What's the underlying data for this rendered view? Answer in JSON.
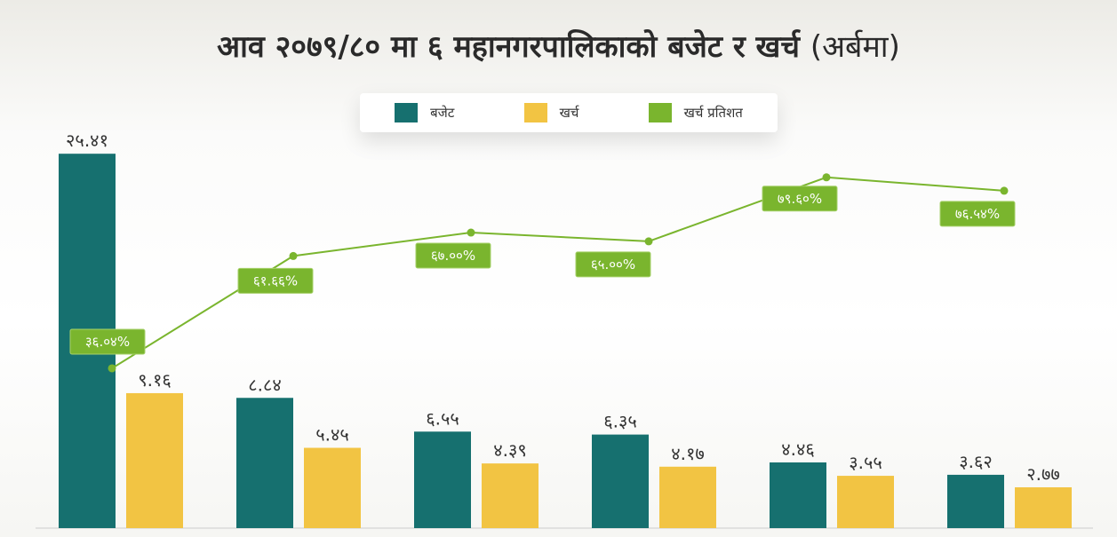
{
  "title": "आव २०७९/८० मा ६ महानगरपालिकाको बजेट र खर्च",
  "title_unit": "(अर्बमा)",
  "legend": [
    {
      "label": "बजेट",
      "color": "#16706f"
    },
    {
      "label": "खर्च",
      "color": "#f2c443"
    },
    {
      "label": "खर्च प्रतिशत",
      "color": "#7ab52e"
    }
  ],
  "chart_data": {
    "type": "bar",
    "title": "आव २०७९/८० मा ६ महानगरपालिकाको बजेट र खर्च (अर्बमा)",
    "categories": [
      "",
      "",
      "",
      "",
      "",
      ""
    ],
    "series": [
      {
        "name": "बजेट",
        "values": [
          25.41,
          8.84,
          6.55,
          6.35,
          4.46,
          3.62
        ],
        "labels": [
          "२५.४१",
          "८.८४",
          "६.५५",
          "६.३५",
          "४.४६",
          "३.६२"
        ]
      },
      {
        "name": "खर्च",
        "values": [
          9.16,
          5.45,
          4.39,
          4.17,
          3.55,
          2.77
        ],
        "labels": [
          "९.१६",
          "५.४५",
          "४.३९",
          "४.१७",
          "३.५५",
          "२.७७"
        ]
      },
      {
        "name": "खर्च प्रतिशत",
        "type": "line",
        "values": [
          36.04,
          61.66,
          67.0,
          65.0,
          79.6,
          76.54
        ],
        "labels": [
          "३६.०४%",
          "६१.६६%",
          "६७.००%",
          "६५.००%",
          "७९.६०%",
          "७६.५४%"
        ]
      }
    ],
    "ylim": [
      0,
      25.41
    ],
    "y2lim": [
      0,
      120
    ],
    "legend_position": "top-center",
    "grid": false
  }
}
